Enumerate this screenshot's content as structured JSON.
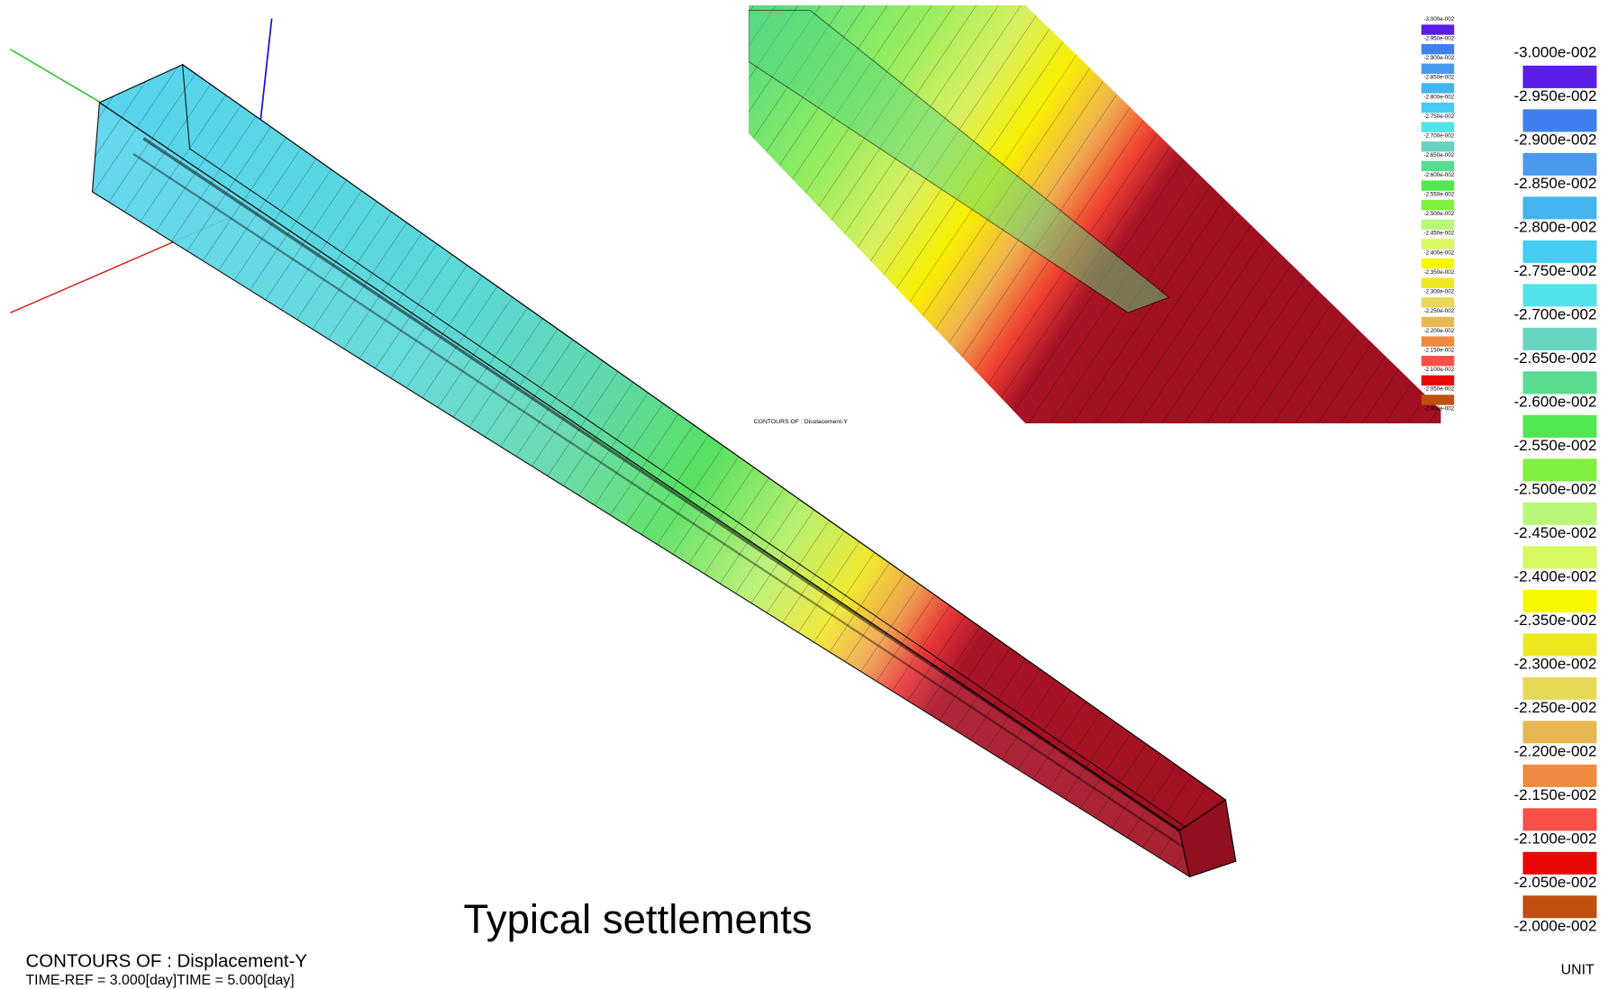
{
  "caption": "Typical settlements",
  "contour_title": "CONTOURS OF : Displacement-Y",
  "time_info": "TIME-REF = 3.000[day]TIME = 5.000[day]",
  "unit_label": "UNIT",
  "legend": {
    "labels": [
      "-3.000e-002",
      "-2.950e-002",
      "-2.900e-002",
      "-2.850e-002",
      "-2.800e-002",
      "-2.750e-002",
      "-2.700e-002",
      "-2.650e-002",
      "-2.600e-002",
      "-2.550e-002",
      "-2.500e-002",
      "-2.450e-002",
      "-2.400e-002",
      "-2.350e-002",
      "-2.300e-002",
      "-2.250e-002",
      "-2.200e-002",
      "-2.150e-002",
      "-2.100e-002",
      "-2.050e-002",
      "-2.000e-002"
    ],
    "colors": [
      "#5a1ee8",
      "#3f7ff0",
      "#4a99ee",
      "#44b4ee",
      "#44ccf2",
      "#50e4e8",
      "#66d4c0",
      "#58dc90",
      "#50e850",
      "#80f040",
      "#b8f878",
      "#d8f860",
      "#f8f800",
      "#eee820",
      "#e8d858",
      "#e8b850",
      "#f08a40",
      "#f85048",
      "#e80808",
      "#c05010"
    ]
  }
}
